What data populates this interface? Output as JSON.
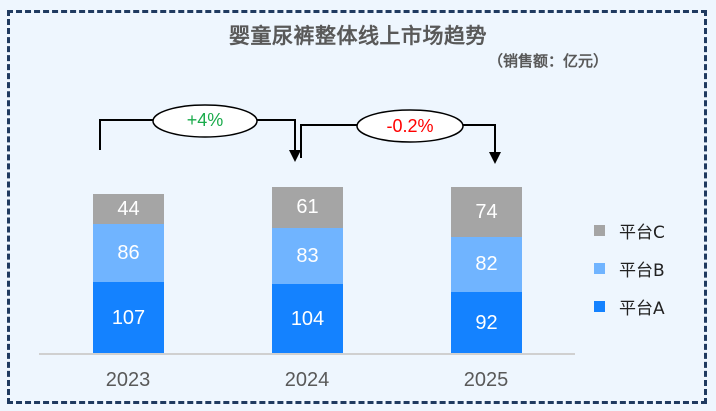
{
  "header": {
    "title": "婴童尿裤整体线上市场趋势",
    "unit": "（销售额：亿元）"
  },
  "annotations": [
    {
      "label": "+4%",
      "color": "#1aab4b",
      "from": "2023",
      "to": "2024"
    },
    {
      "label": "-0.2%",
      "color": "#ff0000",
      "from": "2024",
      "to": "2025"
    }
  ],
  "legend": [
    {
      "label": "平台C",
      "color": "#a5a5a5"
    },
    {
      "label": "平台B",
      "color": "#70b4ff"
    },
    {
      "label": "平台A",
      "color": "#1482ff"
    }
  ],
  "chart_data": {
    "type": "bar",
    "stacked": true,
    "title": "婴童尿裤整体线上市场趋势",
    "subtitle": "（销售额：亿元）",
    "xlabel": "",
    "ylabel": "",
    "categories": [
      "2023",
      "2024",
      "2025"
    ],
    "series": [
      {
        "name": "平台A",
        "color": "#1482ff",
        "values": [
          107,
          104,
          92
        ]
      },
      {
        "name": "平台B",
        "color": "#70b4ff",
        "values": [
          86,
          83,
          82
        ]
      },
      {
        "name": "平台C",
        "color": "#a5a5a5",
        "values": [
          44,
          61,
          74
        ]
      }
    ],
    "totals": [
      237,
      248,
      248
    ],
    "annotations": [
      {
        "text": "+4%",
        "from": "2023",
        "to": "2024"
      },
      {
        "text": "-0.2%",
        "from": "2024",
        "to": "2025"
      }
    ],
    "grid": false,
    "legend_position": "right",
    "ylim": [
      0,
      250
    ]
  }
}
